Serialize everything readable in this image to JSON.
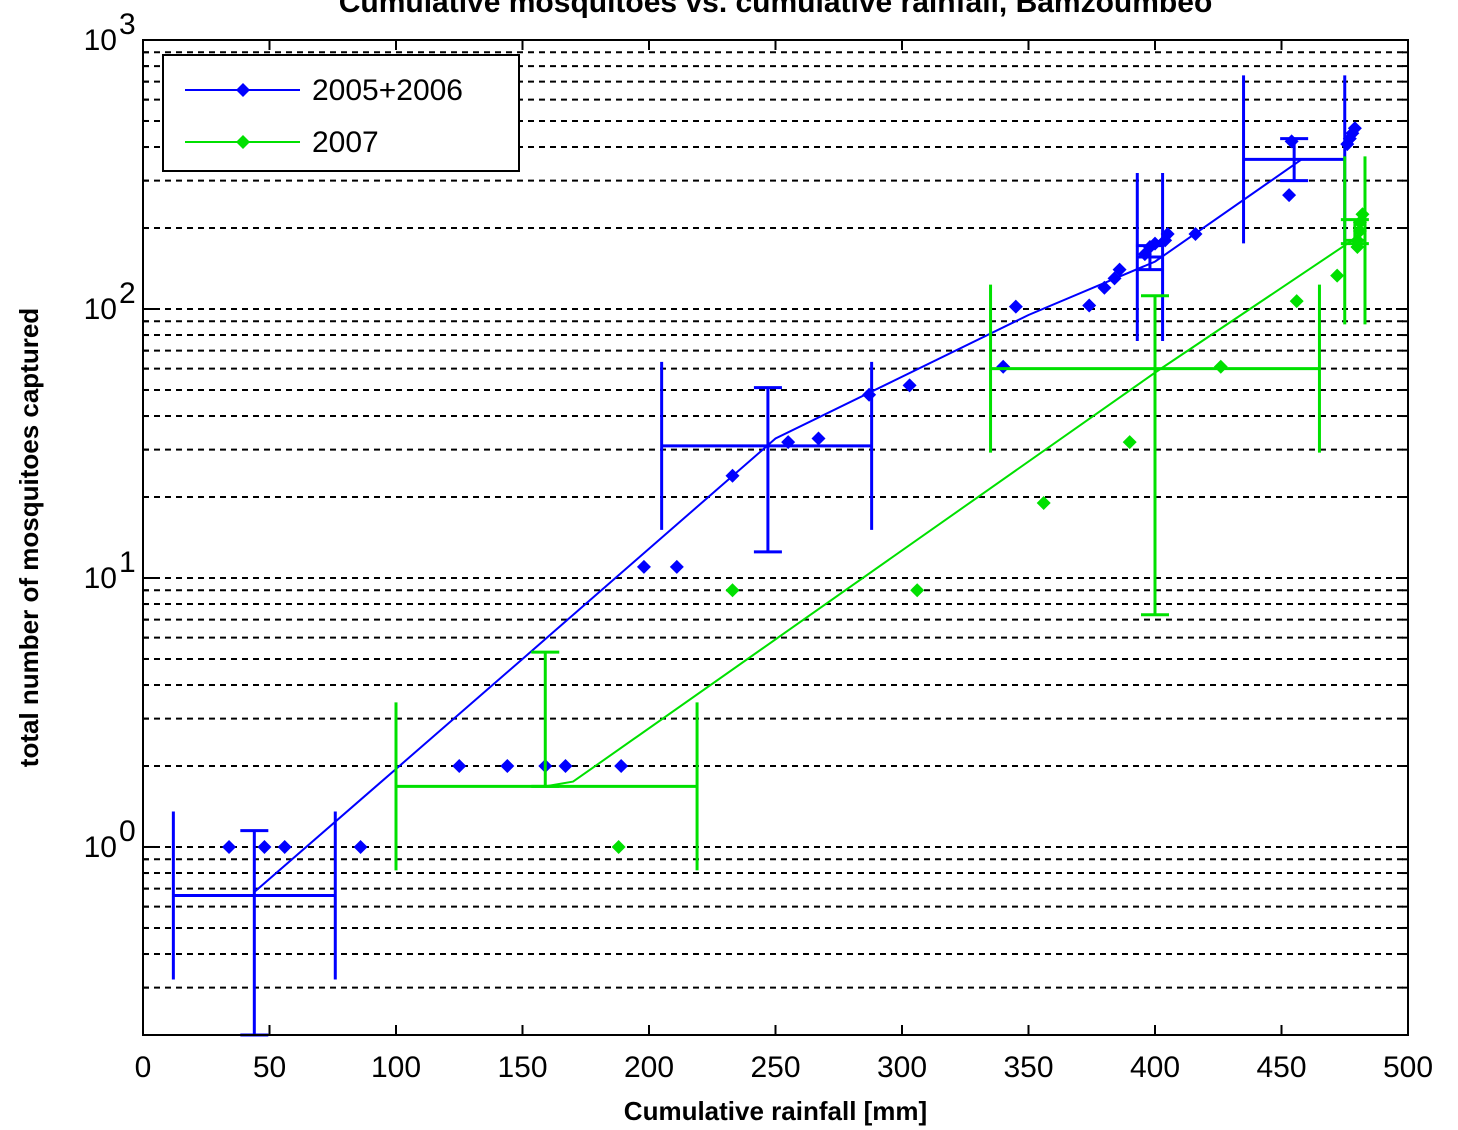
{
  "chart_data": {
    "type": "scatter",
    "title": "Cumulative mosquitoes vs. cumulative rainfall, Bamzoumbeo",
    "xlabel": "Cumulative rainfall [mm]",
    "ylabel": "total number of mosquitoes captured",
    "xlim": [
      0,
      500
    ],
    "ylim": [
      0.2,
      1000
    ],
    "yscale": "log",
    "grid": "y-major-and-minor-dashed",
    "legend_position": "top-left",
    "x_ticks": [
      "0",
      "50",
      "100",
      "150",
      "200",
      "250",
      "300",
      "350",
      "400",
      "450",
      "500"
    ],
    "y_ticks": [
      {
        "base": "10",
        "exp": "0",
        "value": 1
      },
      {
        "base": "10",
        "exp": "1",
        "value": 10
      },
      {
        "base": "10",
        "exp": "2",
        "value": 100
      },
      {
        "base": "10",
        "exp": "3",
        "value": 1000
      }
    ],
    "series": [
      {
        "name": "2005+2006",
        "color": "#0000ff",
        "points": [
          [
            34,
            1
          ],
          [
            48,
            1
          ],
          [
            56,
            1
          ],
          [
            86,
            1
          ],
          [
            125,
            2
          ],
          [
            144,
            2
          ],
          [
            159,
            2
          ],
          [
            167,
            2
          ],
          [
            189,
            2
          ],
          [
            198,
            11
          ],
          [
            211,
            11
          ],
          [
            233,
            24
          ],
          [
            255,
            32
          ],
          [
            267,
            33
          ],
          [
            287,
            48
          ],
          [
            303,
            52
          ],
          [
            340,
            61
          ],
          [
            345,
            102
          ],
          [
            374,
            103
          ],
          [
            380,
            120
          ],
          [
            384,
            130
          ],
          [
            386,
            140
          ],
          [
            396,
            160
          ],
          [
            398,
            170
          ],
          [
            400,
            175
          ],
          [
            404,
            180
          ],
          [
            405,
            190
          ],
          [
            416,
            190
          ],
          [
            453,
            265
          ],
          [
            454,
            420
          ],
          [
            476,
            410
          ],
          [
            477,
            430
          ],
          [
            478,
            450
          ],
          [
            479,
            470
          ]
        ],
        "fit_line": [
          [
            44,
            0.68
          ],
          [
            100,
            1.95
          ],
          [
            150,
            5.0
          ],
          [
            250,
            33
          ],
          [
            350,
            95
          ],
          [
            400,
            150
          ],
          [
            458,
            360
          ]
        ],
        "error_bars": [
          {
            "x": 44,
            "y": 0.66,
            "x_low": 12,
            "x_high": 76,
            "y_low": 0.2,
            "y_high": 1.15
          },
          {
            "x": 247,
            "y": 31,
            "x_low": 205,
            "x_high": 288,
            "y_low": 12.5,
            "y_high": 51
          },
          {
            "x": 398,
            "y": 156,
            "x_low": 393,
            "x_high": 403,
            "y_low": 140,
            "y_high": 172
          },
          {
            "x": 455,
            "y": 360,
            "x_low": 435,
            "x_high": 475,
            "y_low": 300,
            "y_high": 430
          }
        ]
      },
      {
        "name": "2007",
        "color": "#00e000",
        "points": [
          [
            188,
            1
          ],
          [
            233,
            9
          ],
          [
            306,
            9
          ],
          [
            356,
            19
          ],
          [
            390,
            32
          ],
          [
            426,
            61
          ],
          [
            456,
            107
          ],
          [
            472,
            133
          ],
          [
            480,
            170
          ],
          [
            480,
            180
          ],
          [
            481,
            195
          ],
          [
            481,
            210
          ],
          [
            482,
            225
          ]
        ],
        "fit_line": [
          [
            159,
            1.68
          ],
          [
            170,
            1.75
          ],
          [
            400,
            58
          ],
          [
            478,
            180
          ]
        ],
        "error_bars": [
          {
            "x": 159,
            "y": 1.68,
            "x_low": 100,
            "x_high": 219,
            "y_low": 1.68,
            "y_high": 5.3
          },
          {
            "x": 400,
            "y": 60,
            "x_low": 335,
            "x_high": 465,
            "y_low": 7.3,
            "y_high": 112
          },
          {
            "x": 479,
            "y": 180,
            "x_low": 475,
            "x_high": 483,
            "y_low": 175,
            "y_high": 215
          }
        ]
      }
    ]
  }
}
